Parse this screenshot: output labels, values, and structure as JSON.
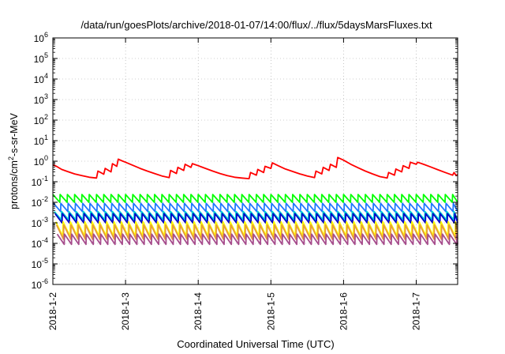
{
  "chart_data": {
    "type": "line",
    "title": "/data/run/goesPlots/archive/2018-01-07/14:00/flux/../flux/5daysMarsFluxes.txt",
    "xlabel": "Coordinated Universal Time (UTC)",
    "ylabel_main": "protons/cm",
    "ylabel_sup": "2",
    "ylabel_tail": "-s-sr-MeV",
    "y_scale": "log",
    "ylim_exponent": [
      -6,
      6
    ],
    "y_tick_exponents": [
      -6,
      -5,
      -4,
      -3,
      -2,
      -1,
      0,
      1,
      2,
      3,
      4,
      5,
      6
    ],
    "y_tick_base": "10",
    "x_range_days": [
      2.0,
      7.57
    ],
    "x_ticks": [
      {
        "day": 2,
        "label": "2018-1-2"
      },
      {
        "day": 3,
        "label": "2018-1-3"
      },
      {
        "day": 4,
        "label": "2018-1-4"
      },
      {
        "day": 5,
        "label": "2018-1-5"
      },
      {
        "day": 6,
        "label": "2018-1-6"
      },
      {
        "day": 7,
        "label": "2018-1-7"
      }
    ],
    "grid": true,
    "legend": "none",
    "sawtooth_period_days": 0.1,
    "series": [
      {
        "color": "#ff0000",
        "log10_points": [
          [
            2.0,
            -0.18
          ],
          [
            2.05,
            -0.25
          ],
          [
            2.12,
            -0.4
          ],
          [
            2.2,
            -0.5
          ],
          [
            2.3,
            -0.62
          ],
          [
            2.4,
            -0.7
          ],
          [
            2.5,
            -0.78
          ],
          [
            2.6,
            -0.82
          ],
          [
            2.62,
            -0.48
          ],
          [
            2.7,
            -0.63
          ],
          [
            2.72,
            -0.35
          ],
          [
            2.8,
            -0.52
          ],
          [
            2.82,
            -0.12
          ],
          [
            2.88,
            -0.25
          ],
          [
            2.9,
            0.1
          ],
          [
            2.95,
            0.02
          ],
          [
            3.0,
            -0.05
          ],
          [
            3.1,
            -0.2
          ],
          [
            3.2,
            -0.35
          ],
          [
            3.3,
            -0.48
          ],
          [
            3.4,
            -0.6
          ],
          [
            3.5,
            -0.72
          ],
          [
            3.6,
            -0.8
          ],
          [
            3.62,
            -0.45
          ],
          [
            3.7,
            -0.6
          ],
          [
            3.72,
            -0.3
          ],
          [
            3.8,
            -0.45
          ],
          [
            3.82,
            -0.15
          ],
          [
            3.9,
            -0.3
          ],
          [
            3.92,
            -0.12
          ],
          [
            4.0,
            -0.22
          ],
          [
            4.1,
            -0.35
          ],
          [
            4.2,
            -0.48
          ],
          [
            4.3,
            -0.6
          ],
          [
            4.4,
            -0.7
          ],
          [
            4.5,
            -0.78
          ],
          [
            4.6,
            -0.82
          ],
          [
            4.7,
            -0.85
          ],
          [
            4.72,
            -0.55
          ],
          [
            4.8,
            -0.68
          ],
          [
            4.82,
            -0.4
          ],
          [
            4.9,
            -0.55
          ],
          [
            4.92,
            -0.25
          ],
          [
            5.0,
            -0.35
          ],
          [
            5.02,
            -0.08
          ],
          [
            5.1,
            -0.22
          ],
          [
            5.2,
            -0.38
          ],
          [
            5.3,
            -0.5
          ],
          [
            5.4,
            -0.62
          ],
          [
            5.5,
            -0.72
          ],
          [
            5.6,
            -0.8
          ],
          [
            5.62,
            -0.48
          ],
          [
            5.7,
            -0.62
          ],
          [
            5.72,
            -0.3
          ],
          [
            5.8,
            -0.45
          ],
          [
            5.82,
            -0.15
          ],
          [
            5.9,
            -0.3
          ],
          [
            5.92,
            0.18
          ],
          [
            6.0,
            0.05
          ],
          [
            6.1,
            -0.15
          ],
          [
            6.2,
            -0.32
          ],
          [
            6.3,
            -0.48
          ],
          [
            6.4,
            -0.62
          ],
          [
            6.5,
            -0.75
          ],
          [
            6.6,
            -0.82
          ],
          [
            6.62,
            -0.55
          ],
          [
            6.7,
            -0.68
          ],
          [
            6.72,
            -0.38
          ],
          [
            6.8,
            -0.52
          ],
          [
            6.82,
            -0.22
          ],
          [
            6.9,
            -0.35
          ],
          [
            6.92,
            -0.05
          ],
          [
            7.0,
            -0.15
          ],
          [
            7.02,
            -0.05
          ],
          [
            7.1,
            -0.15
          ],
          [
            7.2,
            -0.28
          ],
          [
            7.3,
            -0.42
          ],
          [
            7.4,
            -0.55
          ],
          [
            7.5,
            -0.68
          ],
          [
            7.52,
            -0.55
          ],
          [
            7.55,
            -0.7
          ],
          [
            7.57,
            -0.65
          ]
        ]
      },
      {
        "color": "#00ff00",
        "sawtooth": {
          "peak_log10": -1.62,
          "trough_log10": -2.0,
          "phase": 0.0
        }
      },
      {
        "color": "#1f78ff",
        "sawtooth": {
          "peak_log10": -2.05,
          "trough_log10": -2.45,
          "phase": 0.01
        }
      },
      {
        "color": "#00d4d4",
        "sawtooth": {
          "peak_log10": -2.45,
          "trough_log10": -2.85,
          "phase": 0.02
        }
      },
      {
        "color": "#0000c8",
        "sawtooth": {
          "peak_log10": -2.55,
          "trough_log10": -3.0,
          "phase": 0.03
        }
      },
      {
        "color": "#ffff00",
        "sawtooth": {
          "peak_log10": -2.95,
          "trough_log10": -3.65,
          "phase": 0.04
        }
      },
      {
        "color": "#e69a3c",
        "sawtooth": {
          "peak_log10": -3.1,
          "trough_log10": -3.8,
          "phase": 0.05
        }
      },
      {
        "color": "#a64c8c",
        "sawtooth": {
          "peak_log10": -3.55,
          "trough_log10": -4.05,
          "phase": 0.06
        }
      }
    ]
  }
}
